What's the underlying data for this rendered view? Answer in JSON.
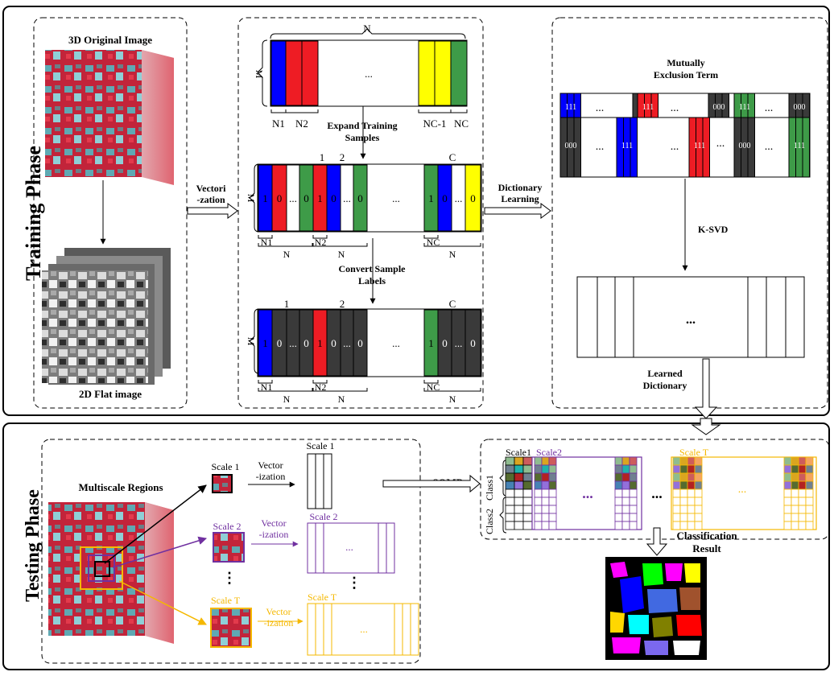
{
  "training": {
    "phase_label": "Training Phase",
    "original_title": "3D Original Image",
    "flat_title": "2D Flat image",
    "vectorization_line1": "Vectori",
    "vectorization_line2": "-zation",
    "top_matrix": {
      "n_label": "N",
      "m_label": "M",
      "ellipsis": "...",
      "n1": "N1",
      "n2": "N2",
      "nc1": "NC-1",
      "nc": "NC"
    },
    "expand_line1": "Expand Training",
    "expand_line2": "Samples",
    "mid_matrix": {
      "m_label": "M",
      "c1": "1",
      "c2": "2",
      "cc": "C",
      "one": "1",
      "zero": "0",
      "dots": "...",
      "ellipsis": "...",
      "n1": "N1",
      "n2": "N2",
      "nc": "NC",
      "n": "N"
    },
    "convert_line1": "Convert Sample",
    "convert_line2": "Labels",
    "bottom_matrix": {
      "m_label": "M",
      "c1": "1",
      "c2": "2",
      "cc": "C",
      "one": "1",
      "zero": "0",
      "dots": "...",
      "ellipsis": "...",
      "n1": "N1",
      "n2": "N2",
      "nc": "NC",
      "n": "N"
    },
    "dictionary_line1": "Dictionary",
    "dictionary_line2": "Learning",
    "mutual_line1": "Mutually",
    "mutual_line2": "Exclusion Term",
    "ones": "111",
    "zeros": "000",
    "dots": "...",
    "ksvd": "K-SVD",
    "learned_line1": "Learned",
    "learned_line2": "Dictionary",
    "learned_ellipsis": "..."
  },
  "testing": {
    "phase_label": "Testing Phase",
    "multiscale_title": "Multiscale Regions",
    "scale1": "Scale 1",
    "scale2": "Scale 2",
    "scaleT": "Scale T",
    "vector_line1": "Vector",
    "vector_line2": "-ization",
    "somp": "SOMP",
    "dict_scale1": "Scale1",
    "dict_scale2": "Scale2",
    "dict_scaleT": "Scale T",
    "class1": "Class1",
    "class2": "Class2",
    "ellipsis": "...",
    "vdots": "⋮",
    "classification_line1": "Classification",
    "classification_line2": "Result"
  },
  "colors": {
    "blue": "#0000ff",
    "red": "#ee1c24",
    "yellow": "#ffff00",
    "green": "#3e9b48",
    "dark": "#3a3a3a",
    "purple": "#7030a0",
    "orange": "#f5b800"
  }
}
